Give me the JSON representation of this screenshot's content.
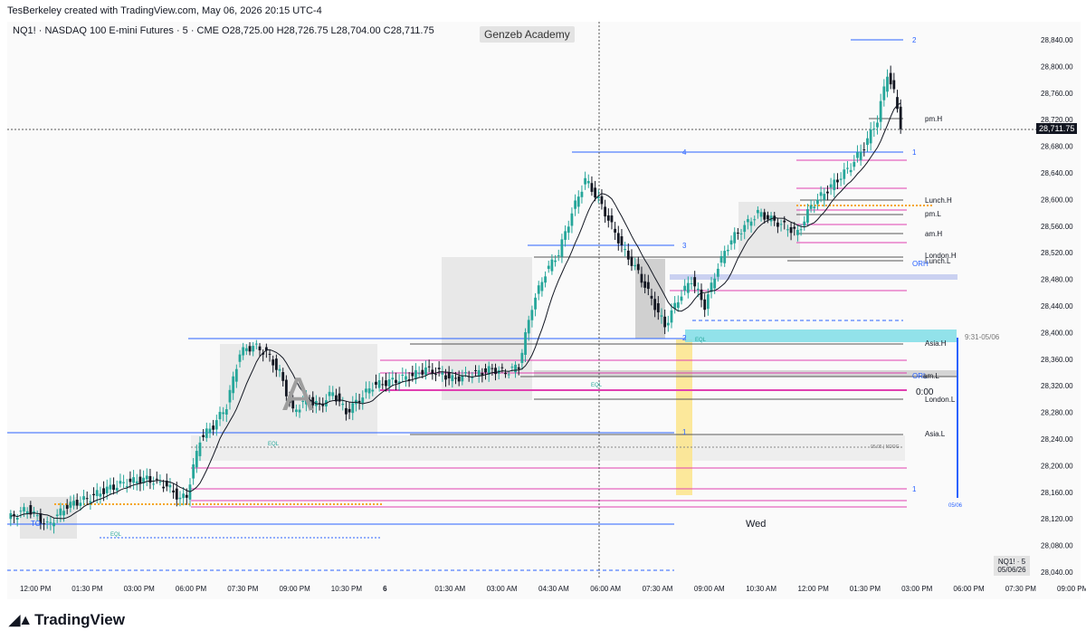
{
  "header": {
    "credit": "TesBerkeley created with TradingView.com, May 06, 2026 20:15 UTC-4",
    "symbol_line": "NQ1! · NASDAQ 100 E-mini Futures · 5 · CME  O28,725.00  H28,726.75  L28,704.00  C28,711.75",
    "watermark": "Genzeb Academy"
  },
  "footer": {
    "brand": "TradingView",
    "stamp_line1": "NQ1! · 5",
    "stamp_line2": "05/06/26"
  },
  "last_price_label": "28,711.75",
  "chart_data": {
    "type": "candlestick",
    "y_range": [
      28020,
      28880
    ],
    "y_ticks": [
      "28,840.00",
      "28,800.00",
      "28,760.00",
      "28,720.00",
      "28,680.00",
      "28,640.00",
      "28,600.00",
      "28,560.00",
      "28,520.00",
      "28,480.00",
      "28,440.00",
      "28,400.00",
      "28,360.00",
      "28,320.00",
      "28,280.00",
      "28,240.00",
      "28,200.00",
      "28,160.00",
      "28,120.00",
      "28,080.00",
      "28,040.00"
    ],
    "x_ticks": [
      "12:00 PM",
      "01:30 PM",
      "03:00 PM",
      "06:00 PM",
      "07:30 PM",
      "09:00 PM",
      "10:30 PM",
      "6",
      "01:30 AM",
      "03:00 AM",
      "04:30 AM",
      "06:00 AM",
      "07:30 AM",
      "09:00 AM",
      "10:30 AM",
      "12:00 PM",
      "01:30 PM",
      "03:00 PM",
      "06:00 PM",
      "07:30 PM",
      "09:00 PM"
    ],
    "price_path": [
      [
        0,
        28120
      ],
      [
        6,
        28135
      ],
      [
        12,
        28110
      ],
      [
        18,
        28140
      ],
      [
        24,
        28150
      ],
      [
        30,
        28165
      ],
      [
        36,
        28175
      ],
      [
        42,
        28180
      ],
      [
        48,
        28170
      ],
      [
        52,
        28150
      ],
      [
        54,
        28155
      ],
      [
        58,
        28240
      ],
      [
        62,
        28260
      ],
      [
        66,
        28290
      ],
      [
        70,
        28370
      ],
      [
        74,
        28380
      ],
      [
        78,
        28370
      ],
      [
        82,
        28340
      ],
      [
        86,
        28280
      ],
      [
        90,
        28300
      ],
      [
        94,
        28290
      ],
      [
        98,
        28310
      ],
      [
        102,
        28280
      ],
      [
        106,
        28300
      ],
      [
        110,
        28320
      ],
      [
        114,
        28325
      ],
      [
        118,
        28330
      ],
      [
        122,
        28335
      ],
      [
        126,
        28345
      ],
      [
        130,
        28340
      ],
      [
        134,
        28330
      ],
      [
        138,
        28335
      ],
      [
        142,
        28340
      ],
      [
        146,
        28345
      ],
      [
        150,
        28340
      ],
      [
        154,
        28350
      ],
      [
        158,
        28440
      ],
      [
        162,
        28490
      ],
      [
        166,
        28520
      ],
      [
        170,
        28580
      ],
      [
        174,
        28630
      ],
      [
        178,
        28600
      ],
      [
        182,
        28560
      ],
      [
        186,
        28520
      ],
      [
        190,
        28490
      ],
      [
        194,
        28450
      ],
      [
        198,
        28410
      ],
      [
        202,
        28450
      ],
      [
        206,
        28480
      ],
      [
        210,
        28440
      ],
      [
        214,
        28500
      ],
      [
        218,
        28540
      ],
      [
        222,
        28560
      ],
      [
        226,
        28580
      ],
      [
        230,
        28570
      ],
      [
        234,
        28560
      ],
      [
        238,
        28550
      ],
      [
        242,
        28590
      ],
      [
        246,
        28610
      ],
      [
        250,
        28630
      ],
      [
        254,
        28650
      ],
      [
        258,
        28680
      ],
      [
        262,
        28720
      ],
      [
        265,
        28790
      ],
      [
        267,
        28760
      ],
      [
        269,
        28711.75
      ]
    ],
    "annotations": [
      "A",
      "2",
      "4",
      "3",
      "2",
      "1",
      "1",
      "1",
      "pm.H",
      "Lunch.H",
      "pm.L",
      "am.H",
      "London.H",
      "Lunch.L",
      "ORH",
      "Asia.H",
      "ORL",
      "am.L",
      "London.L",
      "Asia.L",
      "0:00",
      "9:31-05/06",
      "05/06",
      "Wed",
      "EQL",
      "EQL",
      "EQL",
      "EQL",
      "TO",
      "05:05 | NDOG"
    ],
    "colors": {
      "up": "#26a69a",
      "down": "#131722",
      "ma": "#131722",
      "fvg_cyan": "#7fdde6",
      "highlight_yellow": "#fbe48a",
      "level_magenta": "#e040b0",
      "level_blue": "#2962ff",
      "level_gray": "#555555"
    }
  }
}
